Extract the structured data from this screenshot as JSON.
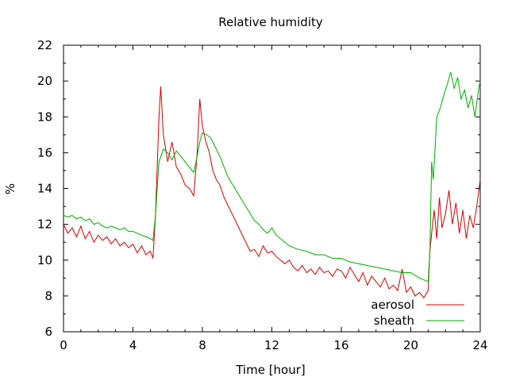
{
  "chart_data": {
    "type": "line",
    "title": "Relative humidity",
    "xlabel": "Time [hour]",
    "ylabel": "%",
    "xlim": [
      0,
      24
    ],
    "ylim": [
      6,
      22
    ],
    "xticks": [
      0,
      4,
      8,
      12,
      16,
      20,
      24
    ],
    "yticks": [
      6,
      8,
      10,
      12,
      14,
      16,
      18,
      20,
      22
    ],
    "grid": false,
    "legend_position": "bottom-right",
    "series": [
      {
        "name": "aerosol",
        "color": "#cc0000",
        "x": [
          0,
          0.25,
          0.5,
          0.75,
          1,
          1.25,
          1.5,
          1.75,
          2,
          2.25,
          2.5,
          2.75,
          3,
          3.25,
          3.5,
          3.75,
          4,
          4.25,
          4.5,
          4.75,
          5,
          5.15,
          5.3,
          5.5,
          5.6,
          5.75,
          6,
          6.25,
          6.5,
          6.75,
          7,
          7.25,
          7.5,
          7.7,
          7.85,
          8,
          8.2,
          8.4,
          8.6,
          8.8,
          9,
          9.25,
          9.5,
          9.75,
          10,
          10.25,
          10.5,
          10.75,
          11,
          11.25,
          11.5,
          11.75,
          12,
          12.25,
          12.5,
          12.75,
          13,
          13.25,
          13.5,
          13.75,
          14,
          14.25,
          14.5,
          14.75,
          15,
          15.25,
          15.5,
          15.75,
          16,
          16.25,
          16.5,
          16.75,
          17,
          17.25,
          17.5,
          17.75,
          18,
          18.25,
          18.5,
          18.75,
          19,
          19.25,
          19.5,
          19.75,
          20,
          20.25,
          20.5,
          20.75,
          21,
          21.1,
          21.2,
          21.35,
          21.5,
          21.65,
          21.8,
          22,
          22.2,
          22.4,
          22.6,
          22.8,
          23,
          23.2,
          23.4,
          23.6,
          23.8,
          24
        ],
        "y": [
          12.0,
          11.5,
          11.8,
          11.3,
          11.9,
          11.2,
          11.6,
          11.0,
          11.4,
          11.1,
          11.3,
          10.9,
          11.2,
          10.8,
          11.0,
          10.7,
          10.9,
          10.4,
          10.8,
          10.3,
          10.5,
          10.1,
          12.5,
          18.0,
          19.7,
          17.0,
          15.5,
          16.6,
          15.2,
          14.8,
          14.2,
          14.0,
          13.6,
          16.0,
          19.0,
          17.5,
          16.6,
          16.0,
          15.0,
          14.5,
          14.2,
          13.5,
          13.0,
          12.5,
          12.0,
          11.5,
          11.0,
          10.5,
          10.6,
          10.2,
          10.8,
          10.4,
          10.5,
          10.2,
          10.0,
          9.8,
          10.0,
          9.6,
          9.4,
          9.7,
          9.3,
          9.5,
          9.2,
          9.6,
          9.3,
          9.4,
          9.1,
          9.5,
          9.4,
          9.0,
          9.6,
          9.2,
          8.8,
          9.3,
          8.6,
          9.1,
          8.8,
          8.5,
          9.0,
          8.4,
          8.6,
          8.3,
          9.5,
          8.2,
          8.5,
          8.0,
          8.2,
          7.9,
          8.3,
          10.5,
          11.5,
          12.8,
          11.2,
          13.5,
          11.8,
          12.6,
          13.9,
          12.0,
          13.2,
          11.5,
          12.8,
          11.2,
          12.5,
          11.8,
          13.0,
          14.5
        ]
      },
      {
        "name": "sheath",
        "color": "#00aa00",
        "x": [
          0,
          0.25,
          0.5,
          0.75,
          1,
          1.25,
          1.5,
          1.75,
          2,
          2.25,
          2.5,
          2.75,
          3,
          3.25,
          3.5,
          3.75,
          4,
          4.25,
          4.5,
          4.75,
          5,
          5.15,
          5.3,
          5.5,
          5.75,
          6,
          6.25,
          6.5,
          6.75,
          7,
          7.25,
          7.5,
          7.7,
          7.85,
          8,
          8.25,
          8.5,
          8.75,
          9,
          9.25,
          9.5,
          9.75,
          10,
          10.25,
          10.5,
          10.75,
          11,
          11.25,
          11.5,
          11.75,
          12,
          12.25,
          12.5,
          12.75,
          13,
          13.5,
          14,
          14.5,
          15,
          15.5,
          16,
          16.5,
          17,
          17.5,
          18,
          18.5,
          19,
          19.5,
          20,
          20.5,
          21,
          21.1,
          21.2,
          21.3,
          21.5,
          21.7,
          21.9,
          22.1,
          22.3,
          22.5,
          22.7,
          22.9,
          23.1,
          23.3,
          23.5,
          23.7,
          23.9,
          24
        ],
        "y": [
          12.5,
          12.4,
          12.5,
          12.3,
          12.4,
          12.2,
          12.3,
          12.0,
          12.1,
          11.9,
          11.8,
          11.9,
          11.8,
          11.7,
          11.8,
          11.6,
          11.6,
          11.5,
          11.4,
          11.3,
          11.2,
          11.1,
          12.5,
          15.5,
          16.2,
          16.0,
          15.6,
          16.1,
          15.8,
          15.5,
          15.2,
          14.9,
          15.8,
          16.6,
          17.1,
          17.0,
          16.8,
          16.3,
          15.8,
          15.2,
          14.6,
          14.2,
          13.8,
          13.4,
          13.0,
          12.6,
          12.2,
          12.0,
          11.7,
          11.5,
          11.8,
          11.4,
          11.2,
          11.0,
          10.8,
          10.6,
          10.5,
          10.3,
          10.3,
          10.1,
          10.1,
          9.9,
          9.8,
          9.7,
          9.6,
          9.5,
          9.4,
          9.3,
          9.3,
          9.0,
          8.8,
          10.5,
          15.5,
          14.5,
          18.0,
          18.5,
          19.2,
          19.8,
          20.5,
          19.6,
          20.2,
          19.0,
          19.5,
          18.5,
          19.2,
          18.0,
          19.5,
          20.0
        ]
      }
    ]
  }
}
